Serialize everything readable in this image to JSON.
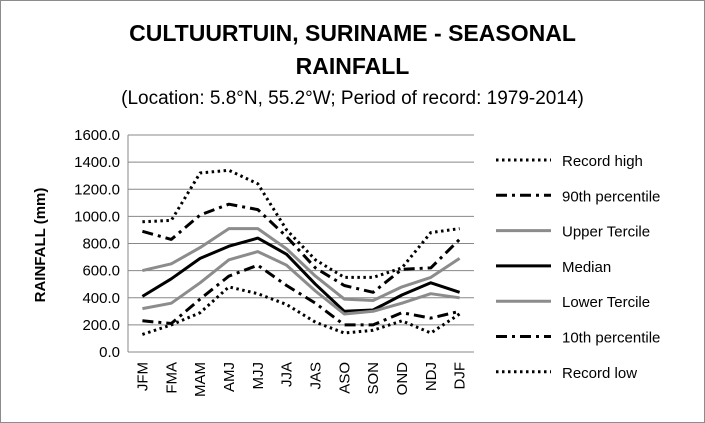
{
  "chart_data": {
    "type": "line",
    "title_line1": "CULTUURTUIN, SURINAME - SEASONAL",
    "title_line2": "RAINFALL",
    "subtitle": "(Location: 5.8°N, 55.2°W; Period of record: 1979-2014)",
    "ylabel": "RAINFALL (mm)",
    "xlabel": "",
    "ylim": [
      0,
      1600
    ],
    "yticks": [
      "0.0",
      "200.0",
      "400.0",
      "600.0",
      "800.0",
      "1000.0",
      "1200.0",
      "1400.0",
      "1600.0"
    ],
    "grid": true,
    "legend_position": "right",
    "categories": [
      "JFM",
      "FMA",
      "MAM",
      "AMJ",
      "MJJ",
      "JJA",
      "JAS",
      "ASO",
      "SON",
      "OND",
      "NDJ",
      "DJF"
    ],
    "series": [
      {
        "name": "Record high",
        "style": "dotted",
        "color": "#000000",
        "values": [
          960,
          970,
          1320,
          1340,
          1240,
          900,
          680,
          550,
          550,
          620,
          880,
          910
        ]
      },
      {
        "name": "90th percentile",
        "style": "dashdot",
        "color": "#000000",
        "values": [
          890,
          830,
          1010,
          1090,
          1050,
          850,
          620,
          490,
          440,
          610,
          620,
          830
        ]
      },
      {
        "name": "Upper Tercile",
        "style": "solid",
        "color": "#8c8c8c",
        "values": [
          600,
          650,
          770,
          910,
          910,
          760,
          560,
          390,
          380,
          480,
          550,
          690
        ]
      },
      {
        "name": "Median",
        "style": "solid",
        "color": "#000000",
        "values": [
          410,
          540,
          690,
          780,
          840,
          720,
          500,
          300,
          310,
          420,
          510,
          440
        ]
      },
      {
        "name": "Lower Tercile",
        "style": "solid",
        "color": "#8c8c8c",
        "values": [
          320,
          360,
          510,
          680,
          740,
          640,
          450,
          280,
          300,
          360,
          430,
          400
        ]
      },
      {
        "name": "10th percentile",
        "style": "dashdot",
        "color": "#000000",
        "values": [
          230,
          210,
          390,
          560,
          640,
          490,
          360,
          200,
          200,
          290,
          250,
          300
        ]
      },
      {
        "name": "Record low",
        "style": "dotted",
        "color": "#000000",
        "values": [
          130,
          200,
          290,
          480,
          430,
          350,
          220,
          140,
          160,
          230,
          140,
          280
        ]
      }
    ]
  }
}
